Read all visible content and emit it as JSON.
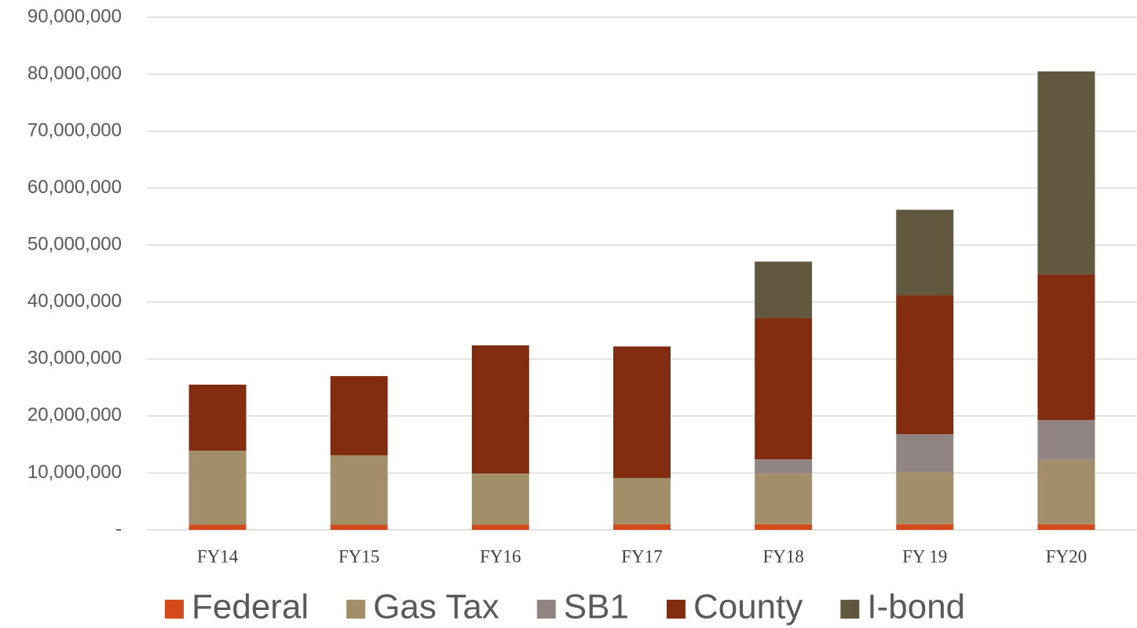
{
  "chart_data": {
    "type": "stacked_bar",
    "categories": [
      "FY14",
      "FY15",
      "FY16",
      "FY17",
      "FY18",
      "FY 19",
      "FY20"
    ],
    "series": [
      {
        "name": "Federal",
        "color": "#d54a1b",
        "values": [
          0.9,
          0.9,
          0.9,
          1.0,
          1.0,
          1.0,
          1.0
        ]
      },
      {
        "name": "Gas Tax",
        "color": "#a38e6a",
        "values": [
          13.0,
          12.2,
          9.0,
          8.1,
          8.9,
          9.1,
          11.3
        ]
      },
      {
        "name": "SB1",
        "color": "#918584",
        "values": [
          0,
          0,
          0,
          0,
          2.5,
          6.7,
          7.0
        ]
      },
      {
        "name": "County",
        "color": "#822d10",
        "values": [
          11.6,
          13.9,
          22.5,
          23.1,
          24.8,
          24.4,
          25.6
        ]
      },
      {
        "name": "I-bond",
        "color": "#62573f",
        "values": [
          0,
          0,
          0,
          0,
          9.9,
          15.0,
          35.6
        ]
      }
    ],
    "ylim": [
      0,
      90
    ],
    "yticks": [
      {
        "value": 0,
        "label": "-"
      },
      {
        "value": 10,
        "label": "10,000,000"
      },
      {
        "value": 20,
        "label": "20,000,000"
      },
      {
        "value": 30,
        "label": "30,000,000"
      },
      {
        "value": 40,
        "label": "40,000,000"
      },
      {
        "value": 50,
        "label": "50,000,000"
      },
      {
        "value": 60,
        "label": "60,000,000"
      },
      {
        "value": 70,
        "label": "70,000,000"
      },
      {
        "value": 80,
        "label": "80,000,000"
      },
      {
        "value": 90,
        "label": "90,000,000"
      }
    ],
    "grid": true,
    "legend": "bottom"
  }
}
